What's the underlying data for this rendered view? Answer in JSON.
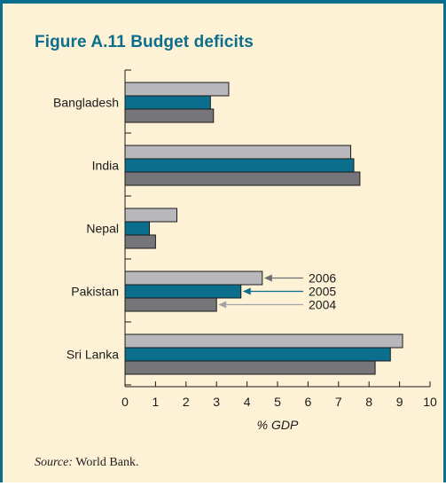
{
  "figure": {
    "title": "Figure A.11  Budget deficits",
    "source_label": "Source:",
    "source_text": " World Bank."
  },
  "colors": {
    "frame": "#0b6e8c",
    "background": "#fdf2d6",
    "2006": "#b8b8bc",
    "2005": "#0b6e8c",
    "2004": "#76767a"
  },
  "chart_data": {
    "type": "bar",
    "orientation": "horizontal",
    "categories": [
      "Bangladesh",
      "India",
      "Nepal",
      "Pakistan",
      "Sri Lanka"
    ],
    "series": [
      {
        "name": "2006",
        "values": [
          3.4,
          7.4,
          1.7,
          4.5,
          9.1
        ]
      },
      {
        "name": "2005",
        "values": [
          2.8,
          7.5,
          0.8,
          3.8,
          8.7
        ]
      },
      {
        "name": "2004",
        "values": [
          2.9,
          7.7,
          1.0,
          3.0,
          8.2
        ]
      }
    ],
    "xlabel": "% GDP",
    "xlim": [
      0,
      10
    ],
    "xticks": [
      "0",
      "1",
      "2",
      "3",
      "4",
      "5",
      "6",
      "7",
      "8",
      "9",
      "10"
    ],
    "legend": {
      "placement": "callouts on Pakistan bars"
    }
  }
}
